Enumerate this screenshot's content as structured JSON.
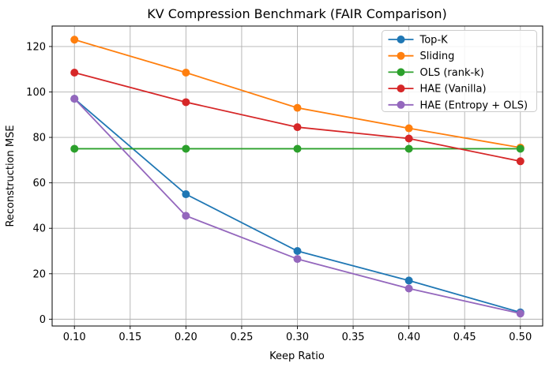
{
  "figure": {
    "background": "#ffffff"
  },
  "chart_data": {
    "type": "line",
    "title": "KV Compression Benchmark (FAIR Comparison)",
    "xlabel": "Keep Ratio",
    "ylabel": "Reconstruction MSE",
    "x": [
      0.1,
      0.2,
      0.3,
      0.4,
      0.5
    ],
    "series": [
      {
        "name": "Top-K",
        "color": "#1f77b4",
        "values": [
          97,
          55,
          30,
          17,
          3
        ]
      },
      {
        "name": "Sliding",
        "color": "#ff7f0e",
        "values": [
          123,
          108.5,
          93,
          84,
          75.5
        ]
      },
      {
        "name": "OLS (rank-k)",
        "color": "#2ca02c",
        "values": [
          75,
          75,
          75,
          75,
          75
        ]
      },
      {
        "name": "HAE (Vanilla)",
        "color": "#d62728",
        "values": [
          108.5,
          95.5,
          84.5,
          79.5,
          69.5
        ]
      },
      {
        "name": "HAE (Entropy + OLS)",
        "color": "#9467bd",
        "values": [
          97,
          45.5,
          26.5,
          13.5,
          2.5
        ]
      }
    ],
    "x_ticks": [
      {
        "value": 0.1,
        "label": "0.10"
      },
      {
        "value": 0.15,
        "label": "0.15"
      },
      {
        "value": 0.2,
        "label": "0.20"
      },
      {
        "value": 0.25,
        "label": "0.25"
      },
      {
        "value": 0.3,
        "label": "0.30"
      },
      {
        "value": 0.35,
        "label": "0.35"
      },
      {
        "value": 0.4,
        "label": "0.40"
      },
      {
        "value": 0.45,
        "label": "0.45"
      },
      {
        "value": 0.5,
        "label": "0.50"
      }
    ],
    "y_ticks": [
      {
        "value": 0,
        "label": "0"
      },
      {
        "value": 20,
        "label": "20"
      },
      {
        "value": 40,
        "label": "40"
      },
      {
        "value": 60,
        "label": "60"
      },
      {
        "value": 80,
        "label": "80"
      },
      {
        "value": 100,
        "label": "100"
      },
      {
        "value": 120,
        "label": "120"
      }
    ],
    "xlim": [
      0.08,
      0.52
    ],
    "ylim": [
      -3,
      129
    ],
    "grid": true,
    "marker": "circle",
    "legend": {
      "position": "upper right",
      "entries": [
        "Top-K",
        "Sliding",
        "OLS (rank-k)",
        "HAE (Vanilla)",
        "HAE (Entropy + OLS)"
      ]
    },
    "colors": {
      "grid": "#b0b0b0",
      "spine": "#000000",
      "text": "#000000",
      "legend_border": "#cccccc",
      "legend_bg": "rgba(255,255,255,0.85)"
    }
  }
}
